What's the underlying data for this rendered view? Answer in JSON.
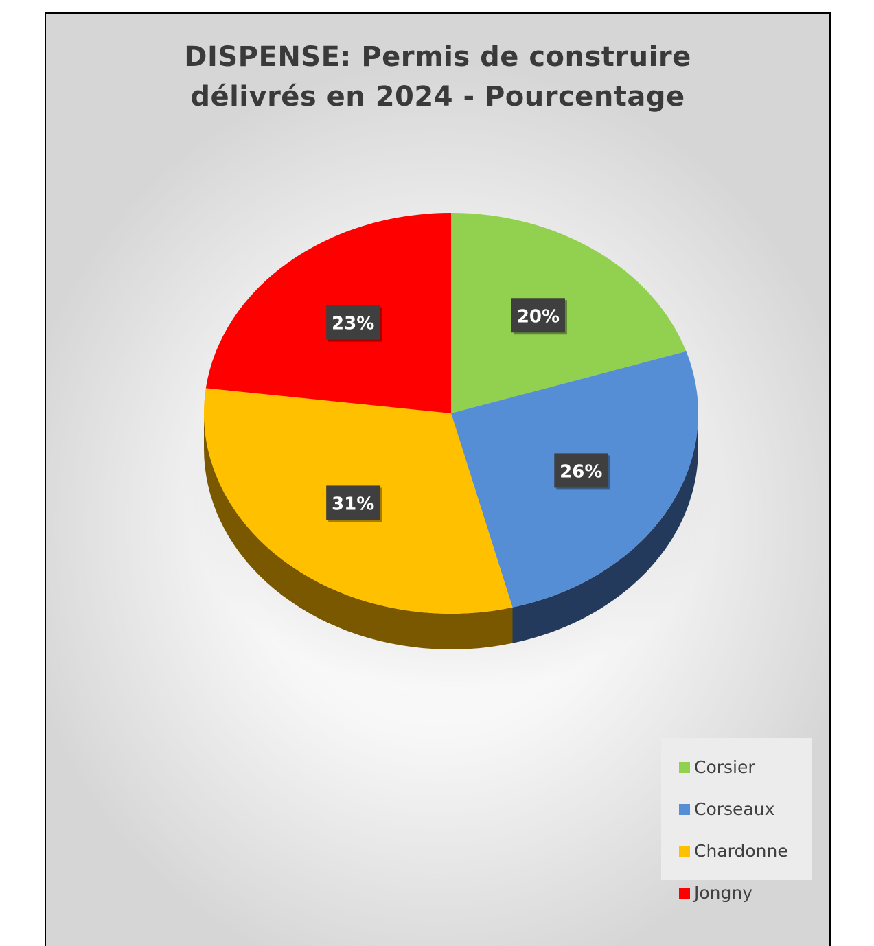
{
  "chart_data": {
    "type": "pie",
    "title": "DISPENSE: Permis de construire délivrés en 2024 - Pourcentage",
    "title_lines": [
      "DISPENSE: Permis de construire",
      "délivrés en 2024 - Pourcentage"
    ],
    "categories": [
      "Corsier",
      "Corseaux",
      "Chardonne",
      "Jongny"
    ],
    "values": [
      20,
      26,
      31,
      23
    ],
    "labels": [
      "20%",
      "26%",
      "31%",
      "23%"
    ],
    "colors": [
      "#92d050",
      "#558ed5",
      "#ffc000",
      "#ff0000"
    ],
    "side_colors": [
      "#5f8a30",
      "#243a5c",
      "#7a5800",
      "#8a0000"
    ],
    "legend_position": "bottom-right",
    "style": "3d"
  }
}
